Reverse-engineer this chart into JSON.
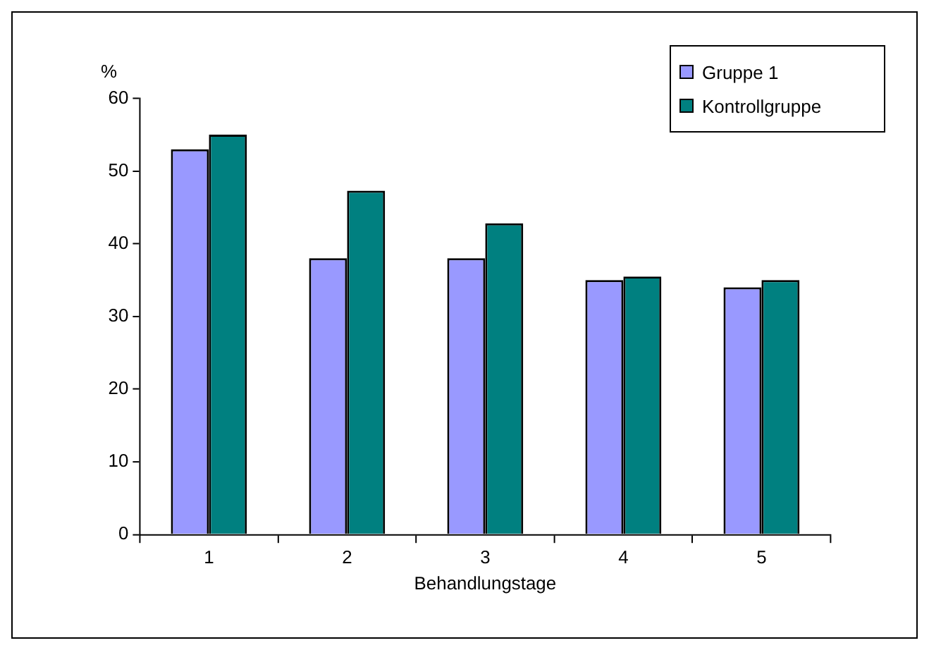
{
  "chart_data": {
    "type": "bar",
    "xlabel": "Behandlungstage",
    "ylabel": "%",
    "categories": [
      "1",
      "2",
      "3",
      "4",
      "5"
    ],
    "series": [
      {
        "name": "Gruppe 1",
        "color": "#9999ff",
        "values": [
          53,
          38,
          38,
          35,
          34
        ]
      },
      {
        "name": "Kontrollgruppe",
        "color": "#008080",
        "values": [
          55,
          47.3,
          42.8,
          35.5,
          35
        ]
      }
    ],
    "ylim": [
      0,
      60
    ],
    "yticks": [
      0,
      10,
      20,
      30,
      40,
      50,
      60
    ],
    "grid": false,
    "legend": "top right"
  }
}
